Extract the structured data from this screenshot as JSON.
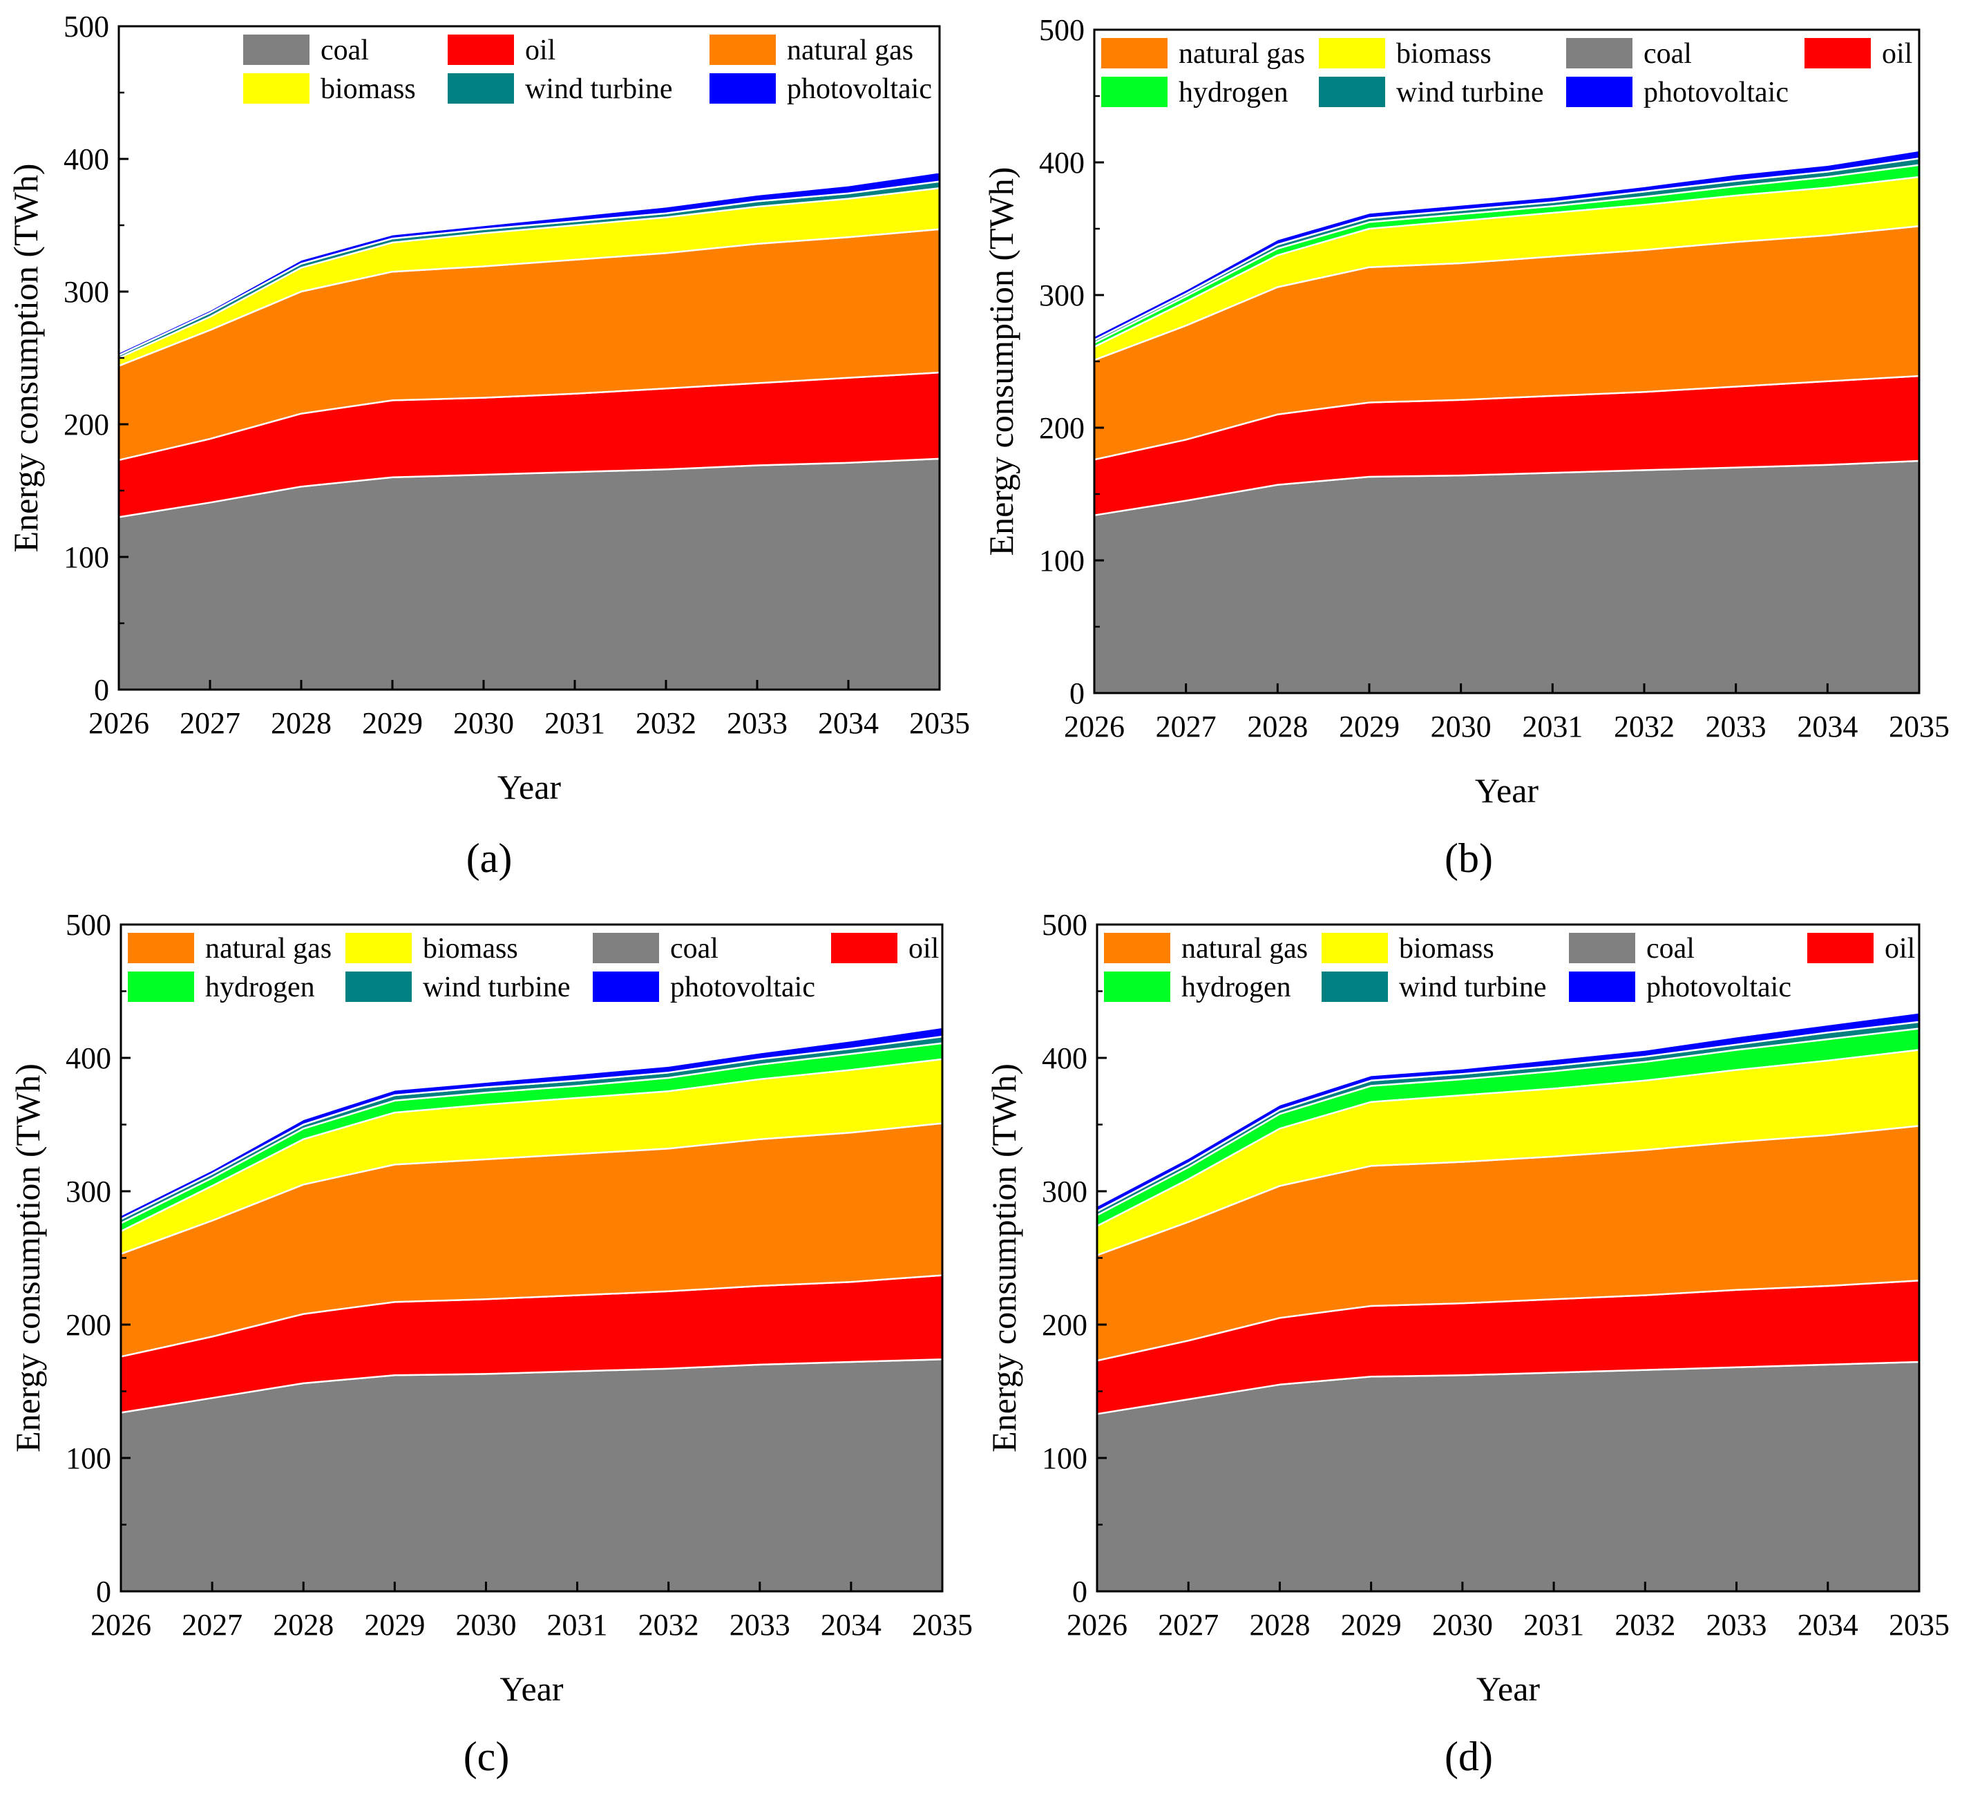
{
  "figure": {
    "colors": {
      "coal": "#808080",
      "oil": "#ff0000",
      "natural gas": "#ff8000",
      "biomass": "#ffff00",
      "hydrogen": "#00ff24",
      "wind turbine": "#008080",
      "photovoltaic": "#0000ff"
    }
  },
  "chart_data": [
    {
      "type": "area",
      "panel_label": "(a)",
      "xlabel": "Year",
      "ylabel": "Energy consumption (TWh)",
      "ylim": [
        0,
        500
      ],
      "yticks": [
        "0",
        "100",
        "200",
        "300",
        "400",
        "500"
      ],
      "categories": [
        "2026",
        "2027",
        "2028",
        "2029",
        "2030",
        "2031",
        "2032",
        "2033",
        "2034",
        "2035"
      ],
      "legend": [
        "coal",
        "oil",
        "natural gas",
        "biomass",
        "wind turbine",
        "photovoltaic"
      ],
      "series": [
        {
          "name": "coal",
          "values": [
            130,
            141,
            153,
            160,
            162,
            164,
            166,
            169,
            171,
            174
          ]
        },
        {
          "name": "oil",
          "values": [
            43,
            48,
            55,
            58,
            58,
            59,
            61,
            62,
            64,
            65
          ]
        },
        {
          "name": "natural gas",
          "values": [
            71,
            82,
            92,
            97,
            99,
            101,
            102,
            105,
            106,
            108
          ]
        },
        {
          "name": "biomass",
          "values": [
            6,
            10,
            18,
            22,
            25,
            26,
            27,
            28,
            29,
            31
          ]
        },
        {
          "name": "wind turbine",
          "values": [
            2,
            3,
            3,
            3,
            3,
            3,
            3,
            4,
            4,
            5
          ]
        },
        {
          "name": "photovoltaic",
          "values": [
            2,
            2,
            3,
            3,
            3,
            4,
            5,
            5,
            6,
            7
          ]
        }
      ]
    },
    {
      "type": "area",
      "panel_label": "(b)",
      "xlabel": "Year",
      "ylabel": "Energy consumption (TWh)",
      "ylim": [
        0,
        500
      ],
      "yticks": [
        "0",
        "100",
        "200",
        "300",
        "400",
        "500"
      ],
      "categories": [
        "2026",
        "2027",
        "2028",
        "2029",
        "2030",
        "2031",
        "2032",
        "2033",
        "2034",
        "2035"
      ],
      "legend": [
        "natural gas",
        "biomass",
        "coal",
        "oil",
        "hydrogen",
        "wind turbine",
        "photovoltaic"
      ],
      "series": [
        {
          "name": "coal",
          "values": [
            134,
            145,
            157,
            163,
            164,
            166,
            168,
            170,
            172,
            175
          ]
        },
        {
          "name": "oil",
          "values": [
            42,
            46,
            53,
            56,
            57,
            58,
            59,
            61,
            63,
            64
          ]
        },
        {
          "name": "natural gas",
          "values": [
            75,
            86,
            96,
            102,
            103,
            105,
            107,
            109,
            110,
            113
          ]
        },
        {
          "name": "biomass",
          "values": [
            10,
            18,
            24,
            29,
            32,
            33,
            34,
            35,
            36,
            37
          ]
        },
        {
          "name": "hydrogen",
          "values": [
            3,
            4,
            5,
            5,
            5,
            5,
            6,
            7,
            8,
            9
          ]
        },
        {
          "name": "wind turbine",
          "values": [
            2,
            2,
            3,
            3,
            3,
            3,
            4,
            4,
            4,
            5
          ]
        },
        {
          "name": "photovoltaic",
          "values": [
            3,
            3,
            4,
            4,
            4,
            4,
            4,
            5,
            5,
            6
          ]
        }
      ]
    },
    {
      "type": "area",
      "panel_label": "(c)",
      "xlabel": "Year",
      "ylabel": "Energy consumption (TWh)",
      "ylim": [
        0,
        500
      ],
      "yticks": [
        "0",
        "100",
        "200",
        "300",
        "400",
        "500"
      ],
      "categories": [
        "2026",
        "2027",
        "2028",
        "2029",
        "2030",
        "2031",
        "2032",
        "2033",
        "2034",
        "2035"
      ],
      "legend": [
        "natural gas",
        "biomass",
        "coal",
        "oil",
        "hydrogen",
        "wind turbine",
        "photovoltaic"
      ],
      "series": [
        {
          "name": "coal",
          "values": [
            134,
            145,
            156,
            162,
            163,
            165,
            167,
            170,
            172,
            174
          ]
        },
        {
          "name": "oil",
          "values": [
            42,
            46,
            52,
            55,
            56,
            57,
            58,
            59,
            60,
            63
          ]
        },
        {
          "name": "natural gas",
          "values": [
            77,
            87,
            97,
            103,
            105,
            106,
            107,
            110,
            112,
            114
          ]
        },
        {
          "name": "biomass",
          "values": [
            17,
            26,
            34,
            39,
            41,
            42,
            43,
            45,
            47,
            48
          ]
        },
        {
          "name": "hydrogen",
          "values": [
            6,
            6,
            8,
            9,
            9,
            9,
            10,
            11,
            12,
            12
          ]
        },
        {
          "name": "wind turbine",
          "values": [
            3,
            3,
            3,
            4,
            4,
            4,
            4,
            4,
            4,
            5
          ]
        },
        {
          "name": "photovoltaic",
          "values": [
            3,
            3,
            4,
            4,
            4,
            5,
            5,
            5,
            6,
            7
          ]
        }
      ]
    },
    {
      "type": "area",
      "panel_label": "(d)",
      "xlabel": "Year",
      "ylabel": "Energy consumption (TWh)",
      "ylim": [
        0,
        500
      ],
      "yticks": [
        "0",
        "100",
        "200",
        "300",
        "400",
        "500"
      ],
      "categories": [
        "2026",
        "2027",
        "2028",
        "2029",
        "2030",
        "2031",
        "2032",
        "2033",
        "2034",
        "2035"
      ],
      "legend": [
        "natural gas",
        "biomass",
        "coal",
        "oil",
        "hydrogen",
        "wind turbine",
        "photovoltaic"
      ],
      "series": [
        {
          "name": "coal",
          "values": [
            133,
            144,
            155,
            161,
            162,
            164,
            166,
            168,
            170,
            172
          ]
        },
        {
          "name": "oil",
          "values": [
            40,
            44,
            50,
            53,
            54,
            55,
            56,
            58,
            59,
            61
          ]
        },
        {
          "name": "natural gas",
          "values": [
            79,
            89,
            99,
            105,
            106,
            107,
            109,
            111,
            113,
            116
          ]
        },
        {
          "name": "biomass",
          "values": [
            22,
            32,
            43,
            48,
            50,
            51,
            52,
            54,
            56,
            57
          ]
        },
        {
          "name": "hydrogen",
          "values": [
            8,
            9,
            11,
            12,
            12,
            13,
            14,
            15,
            16,
            16
          ]
        },
        {
          "name": "wind turbine",
          "values": [
            3,
            3,
            3,
            4,
            4,
            4,
            4,
            4,
            5,
            5
          ]
        },
        {
          "name": "photovoltaic",
          "values": [
            4,
            4,
            4,
            4,
            4,
            5,
            5,
            6,
            6,
            7
          ]
        }
      ]
    }
  ]
}
